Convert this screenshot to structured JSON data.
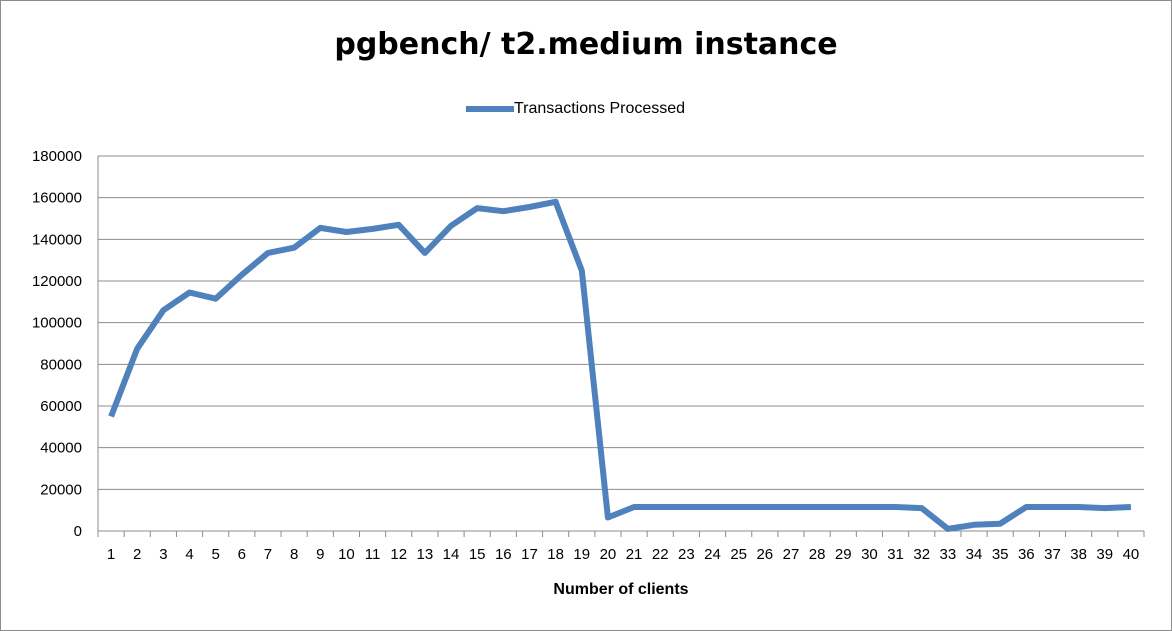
{
  "chart_data": {
    "type": "line",
    "title": "pgbench/ t2.medium instance",
    "xlabel": "Number of clients",
    "ylabel": "",
    "ylim": [
      0,
      180000
    ],
    "yticks": [
      0,
      20000,
      40000,
      60000,
      80000,
      100000,
      120000,
      140000,
      160000,
      180000
    ],
    "grid": true,
    "legend": "top-center",
    "x": [
      1,
      2,
      3,
      4,
      5,
      6,
      7,
      8,
      9,
      10,
      11,
      12,
      13,
      14,
      15,
      16,
      17,
      18,
      19,
      20,
      21,
      22,
      23,
      24,
      25,
      26,
      27,
      28,
      29,
      30,
      31,
      32,
      33,
      34,
      35,
      36,
      37,
      38,
      39,
      40
    ],
    "series": [
      {
        "name": "Transactions Processed",
        "color": "#4f81bd",
        "values": [
          55000,
          87500,
          106000,
          114500,
          111500,
          123000,
          133500,
          136000,
          145500,
          143500,
          145000,
          147000,
          133500,
          146500,
          155000,
          153500,
          155500,
          158000,
          125000,
          6500,
          11500,
          11500,
          11500,
          11500,
          11500,
          11500,
          11500,
          11500,
          11500,
          11500,
          11500,
          11000,
          1000,
          3000,
          3500,
          11500,
          11500,
          11500,
          11000,
          11500
        ]
      }
    ]
  }
}
